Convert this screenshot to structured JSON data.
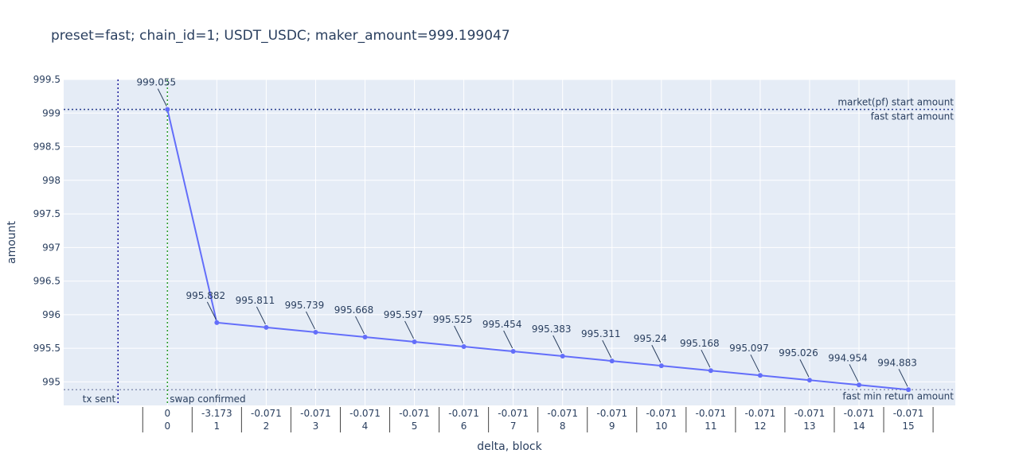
{
  "chart_data": {
    "type": "line",
    "title": "preset=fast; chain_id=1; USDT_USDC; maker_amount=999.199047",
    "xlabel": "delta, block",
    "ylabel": "amount",
    "x": [
      0,
      1,
      2,
      3,
      4,
      5,
      6,
      7,
      8,
      9,
      10,
      11,
      12,
      13,
      14,
      15
    ],
    "x_tick_blocks": [
      "0",
      "1",
      "2",
      "3",
      "4",
      "5",
      "6",
      "7",
      "8",
      "9",
      "10",
      "11",
      "12",
      "13",
      "14",
      "15"
    ],
    "x_tick_deltas": [
      "0",
      "-3.173",
      "-0.071",
      "-0.071",
      "-0.071",
      "-0.071",
      "-0.071",
      "-0.071",
      "-0.071",
      "-0.071",
      "-0.071",
      "-0.071",
      "-0.071",
      "-0.071",
      "-0.071",
      "-0.071"
    ],
    "values": [
      999.055,
      995.882,
      995.811,
      995.739,
      995.668,
      995.597,
      995.525,
      995.454,
      995.383,
      995.311,
      995.24,
      995.168,
      995.097,
      995.026,
      994.954,
      994.883
    ],
    "point_labels": [
      "999.055",
      "995.882",
      "995.811",
      "995.739",
      "995.668",
      "995.597",
      "995.525",
      "995.454",
      "995.383",
      "995.311",
      "995.24",
      "995.168",
      "995.097",
      "995.026",
      "994.954",
      "994.883"
    ],
    "ylim": [
      994.65,
      999.5
    ],
    "xlim": [
      -2.1,
      15.95
    ],
    "y_ticks": [
      995,
      995.5,
      996,
      996.5,
      997,
      997.5,
      998,
      998.5,
      999,
      999.5
    ],
    "y_tick_labels": [
      "995",
      "995.5",
      "996",
      "996.5",
      "997",
      "997.5",
      "998",
      "998.5",
      "999",
      "999.5"
    ],
    "horizontal_lines": [
      {
        "y": 999.055,
        "labels": [
          "market(pf) start amount",
          "fast start amount"
        ],
        "color": "#2a3f8f"
      },
      {
        "y": 994.883,
        "labels": [
          "fast min return amount"
        ],
        "color": "#8a95b5"
      }
    ],
    "vertical_lines": [
      {
        "x": -1,
        "label": "tx sent",
        "color": "#1a1a9a"
      },
      {
        "x": 0,
        "label": "swap confirmed",
        "color": "#2a9a2a"
      }
    ],
    "series_color": "#636efa",
    "grid": true,
    "plot_bg": "#e5ecf6"
  }
}
